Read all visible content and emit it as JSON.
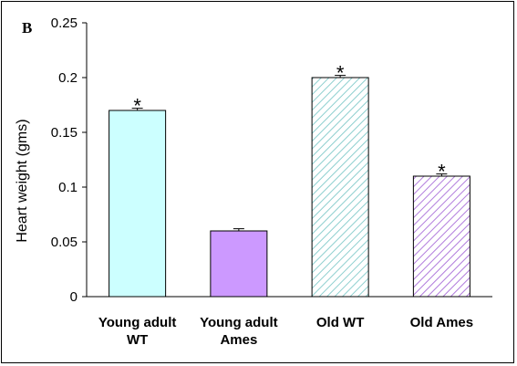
{
  "panel_label": "B",
  "chart_data": {
    "type": "bar",
    "categories": [
      "Young adult\nWT",
      "Young adult\nAmes",
      "Old WT",
      "Old Ames"
    ],
    "values": [
      0.17,
      0.06,
      0.2,
      0.11
    ],
    "errors": [
      0.002,
      0.002,
      0.002,
      0.002
    ],
    "significance": [
      "*",
      "",
      "*",
      "*"
    ],
    "bar_colors": [
      "#ccffff",
      "#cc99ff",
      "#ccffff",
      "#cc99ff"
    ],
    "bar_patterns": [
      "solid",
      "solid",
      "hatched",
      "hatched"
    ],
    "hatch_colors": [
      "",
      "",
      "#8ecfcf",
      "#b07bdc"
    ],
    "title": "",
    "xlabel": "",
    "ylabel": "Heart weight  (gms)",
    "ylim": [
      0,
      0.25
    ],
    "yticks": [
      0,
      0.05,
      0.1,
      0.15,
      0.2,
      0.25
    ],
    "ytick_labels": [
      "0",
      "0.05",
      "0.1",
      "0.15",
      "0.2",
      "0.25"
    ],
    "grid": false,
    "legend": "none"
  }
}
